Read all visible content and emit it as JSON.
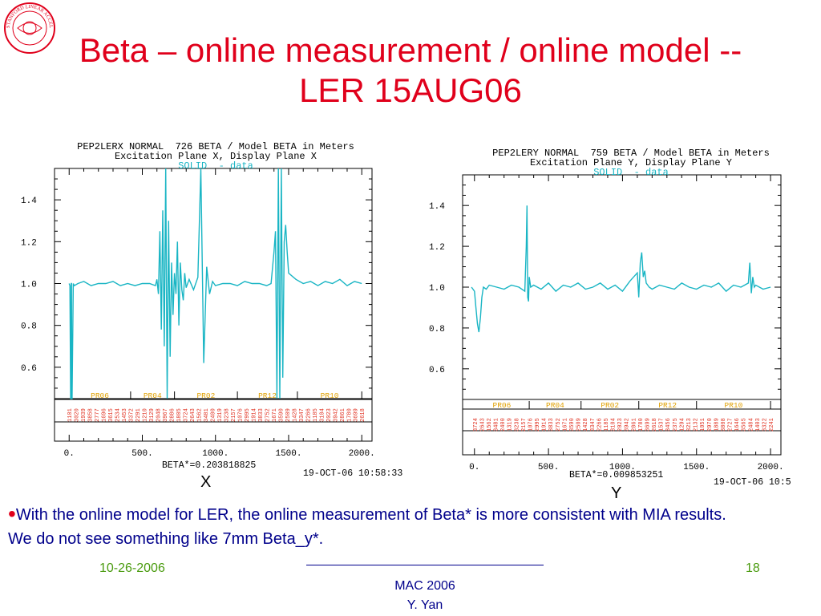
{
  "slide": {
    "title_line1": "Beta – online measurement / online model --",
    "title_line2": "LER 15AUG06",
    "bullet": "With the online model for LER, the online measurement of Beta* is more consistent with MIA results. We do not see something like 7mm Beta_y*.",
    "footer_date": "10-26-2006",
    "footer_line": "____________________________",
    "footer_conference": "MAC 2006",
    "footer_author": "Y. Yan",
    "page_number": "18"
  },
  "colors": {
    "title": "#e0001b",
    "bullet_text": "#00008b",
    "footer_green": "#4a9b0f",
    "trace": "#19b5c4",
    "region_label": "#e0a000",
    "bpm_label": "#e03020"
  },
  "logo": {
    "text": "STANFORD LINEAR ACCELERATOR CENTER"
  },
  "chart_data": [
    {
      "type": "line",
      "header_line1": "PEP2LERX NORMAL  726 BETA / Model BETA in Meters",
      "header_line2": "Excitation Plane X, Display Plane X",
      "legend": "SOLID  - data",
      "xlim": [
        -100,
        2070
      ],
      "ylim": [
        0.45,
        1.55
      ],
      "x_ticks": [
        0,
        500,
        1000,
        1500,
        2000
      ],
      "x_tick_labels": [
        "0.",
        "500.",
        "1000.",
        "1500.",
        "2000."
      ],
      "y_ticks": [
        0.6,
        0.8,
        1.0,
        1.2,
        1.4
      ],
      "y_tick_labels": [
        "0.6",
        "0.8",
        "1.0",
        "1.2",
        "1.4"
      ],
      "regions": [
        {
          "label": "PR06",
          "x_start": 0,
          "x_end": 420
        },
        {
          "label": "PR04",
          "x_start": 420,
          "x_end": 720
        },
        {
          "label": "PR02",
          "x_start": 720,
          "x_end": 1150
        },
        {
          "label": "PR12",
          "x_start": 1150,
          "x_end": 1560
        },
        {
          "label": "PR10",
          "x_start": 1560,
          "x_end": 2000
        }
      ],
      "beta_star": "BETA*=0.203818825",
      "timestamp": "19-OCT-06 10:58:33",
      "caption": "X",
      "series": [
        {
          "x": [
            0,
            5,
            10,
            12,
            14,
            16,
            18,
            20,
            28,
            35,
            60,
            100,
            150,
            200,
            250,
            300,
            350,
            400,
            450,
            500,
            550,
            590,
            600,
            610,
            620,
            630,
            640,
            650,
            660,
            670,
            680,
            690,
            700,
            710,
            720,
            730,
            740,
            750,
            760,
            770,
            780,
            790,
            800,
            820,
            850,
            880,
            900,
            920,
            940,
            960,
            980,
            1000,
            1050,
            1100,
            1150,
            1200,
            1250,
            1300,
            1350,
            1380,
            1400,
            1410,
            1420,
            1430,
            1440,
            1450,
            1460,
            1470,
            1480,
            1490,
            1500,
            1550,
            1600,
            1650,
            1700,
            1750,
            1800,
            1850,
            1900,
            1950,
            2000
          ],
          "y": [
            1.0,
            0.99,
            0.45,
            0.45,
            1.0,
            1.0,
            0.45,
            0.45,
            1.0,
            0.99,
            1.0,
            1.01,
            0.99,
            1.0,
            1.0,
            1.01,
            0.99,
            1.0,
            0.99,
            1.0,
            1.0,
            0.99,
            1.02,
            0.95,
            1.25,
            0.78,
            1.35,
            0.7,
            1.55,
            0.45,
            1.3,
            0.65,
            1.1,
            0.85,
            1.05,
            0.95,
            1.2,
            0.8,
            1.1,
            0.97,
            0.92,
            1.05,
            0.98,
            1.02,
            0.97,
            1.03,
            1.55,
            0.62,
            1.08,
            0.95,
            1.01,
            0.99,
            1.0,
            1.0,
            0.99,
            1.01,
            1.0,
            1.0,
            0.99,
            1.0,
            1.15,
            1.25,
            0.45,
            1.55,
            0.45,
            1.55,
            0.55,
            1.2,
            1.28,
            1.15,
            1.05,
            1.02,
            1.0,
            1.01,
            0.99,
            1.01,
            1.0,
            1.02,
            0.99,
            1.01,
            1.0
          ]
        }
      ]
    },
    {
      "type": "line",
      "header_line1": "PEP2LERY NORMAL  759 BETA / Model BETA in Meters",
      "header_line2": "Excitation Plane Y, Display Plane Y",
      "legend": "SOLID  - data",
      "xlim": [
        -80,
        2070
      ],
      "ylim": [
        0.45,
        1.55
      ],
      "x_ticks": [
        0,
        500,
        1000,
        1500,
        2000
      ],
      "x_tick_labels": [
        "0.",
        "500.",
        "1000.",
        "1500.",
        "2000."
      ],
      "y_ticks": [
        0.6,
        0.8,
        1.0,
        1.2,
        1.4
      ],
      "y_tick_labels": [
        "0.6",
        "0.8",
        "1.0",
        "1.2",
        "1.4"
      ],
      "regions": [
        {
          "label": "PR06",
          "x_start": 0,
          "x_end": 370
        },
        {
          "label": "PR04",
          "x_start": 370,
          "x_end": 720
        },
        {
          "label": "PR02",
          "x_start": 720,
          "x_end": 1110
        },
        {
          "label": "PR12",
          "x_start": 1110,
          "x_end": 1500
        },
        {
          "label": "PR10",
          "x_start": 1500,
          "x_end": 2000
        }
      ],
      "beta_star": "BETA*=0.009853251",
      "timestamp": "19-OCT-06 10:5",
      "caption": "Y",
      "series": [
        {
          "x": [
            -20,
            0,
            10,
            20,
            30,
            40,
            50,
            60,
            80,
            100,
            150,
            200,
            250,
            300,
            340,
            350,
            355,
            360,
            365,
            370,
            380,
            400,
            450,
            500,
            550,
            600,
            650,
            700,
            750,
            800,
            850,
            900,
            950,
            1000,
            1050,
            1100,
            1110,
            1120,
            1130,
            1140,
            1150,
            1160,
            1180,
            1200,
            1250,
            1300,
            1350,
            1400,
            1450,
            1500,
            1550,
            1600,
            1650,
            1700,
            1750,
            1800,
            1850,
            1860,
            1870,
            1880,
            1890,
            1900,
            1950,
            2000
          ],
          "y": [
            1.0,
            0.98,
            0.9,
            0.82,
            0.78,
            0.85,
            0.95,
            1.0,
            0.99,
            1.01,
            1.0,
            0.99,
            1.01,
            1.0,
            0.98,
            1.2,
            1.4,
            0.95,
            0.93,
            1.05,
            1.0,
            1.01,
            0.99,
            1.02,
            0.98,
            1.01,
            1.0,
            1.02,
            0.99,
            1.0,
            1.02,
            0.99,
            1.01,
            0.98,
            1.03,
            1.07,
            0.95,
            1.12,
            1.17,
            1.05,
            1.08,
            1.02,
            1.0,
            0.99,
            1.01,
            1.0,
            0.99,
            1.02,
            1.0,
            0.99,
            1.01,
            1.0,
            1.02,
            0.98,
            1.01,
            1.0,
            1.02,
            1.12,
            0.97,
            1.05,
            1.0,
            1.01,
            0.99,
            1.0
          ]
        }
      ]
    }
  ]
}
